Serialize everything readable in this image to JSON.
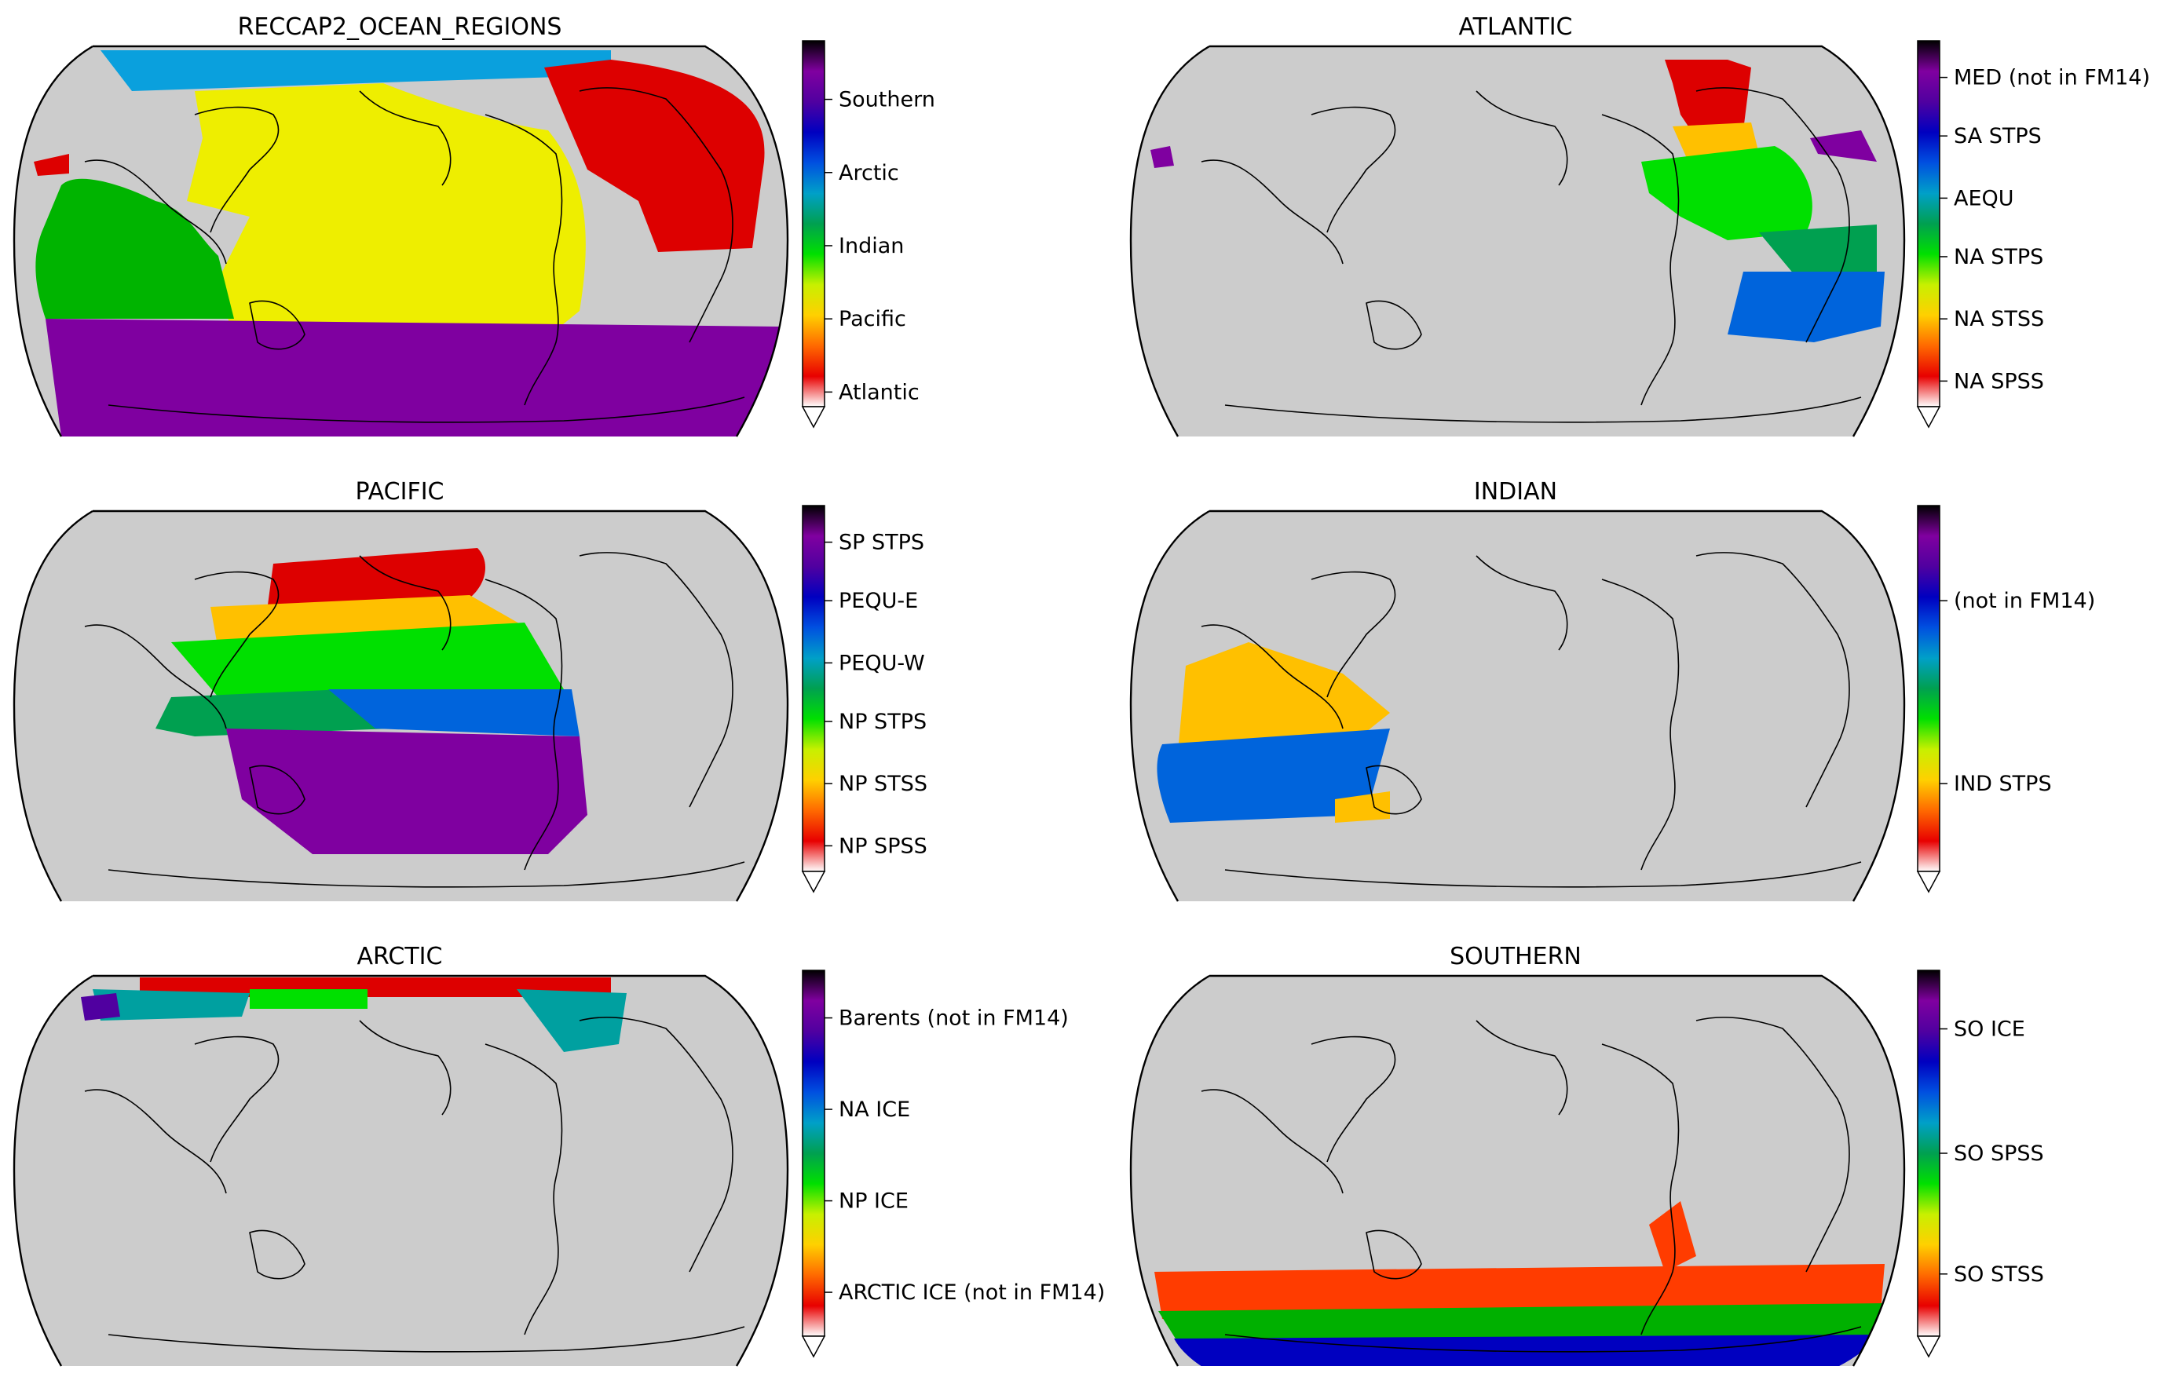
{
  "colors": {
    "land": "#cccccc",
    "background": "#ffffff",
    "atlantic": "#dd0000",
    "pacific": "#eeee00",
    "indian": "#00b400",
    "arctic": "#0aa0dd",
    "southern": "#7f00a0"
  },
  "colormap": [
    "#ffffff",
    "#e80000",
    "#ff6a00",
    "#ffd000",
    "#c8f000",
    "#00e000",
    "#00a050",
    "#00a0c8",
    "#0050e0",
    "#0000c0",
    "#5000a0",
    "#8000a0",
    "#000000"
  ],
  "panels": [
    {
      "id": "reccap2",
      "title": "RECCAP2_OCEAN_REGIONS",
      "colorbar": [
        {
          "label": "Southern",
          "position": 0.84
        },
        {
          "label": "Arctic",
          "position": 0.64
        },
        {
          "label": "Indian",
          "position": 0.44
        },
        {
          "label": "Pacific",
          "position": 0.24
        },
        {
          "label": "Atlantic",
          "position": 0.04
        }
      ]
    },
    {
      "id": "atlantic",
      "title": "ATLANTIC",
      "colorbar": [
        {
          "label": "MED (not in FM14)",
          "position": 0.9
        },
        {
          "label": "SA STPS",
          "position": 0.74
        },
        {
          "label": "AEQU",
          "position": 0.57
        },
        {
          "label": "NA STPS",
          "position": 0.41
        },
        {
          "label": "NA STSS",
          "position": 0.24
        },
        {
          "label": "NA SPSS",
          "position": 0.07
        }
      ]
    },
    {
      "id": "pacific",
      "title": "PACIFIC",
      "colorbar": [
        {
          "label": "SP STPS",
          "position": 0.9
        },
        {
          "label": "PEQU-E",
          "position": 0.74
        },
        {
          "label": "PEQU-W",
          "position": 0.57
        },
        {
          "label": "NP STPS",
          "position": 0.41
        },
        {
          "label": "NP STSS",
          "position": 0.24
        },
        {
          "label": "NP SPSS",
          "position": 0.07
        }
      ]
    },
    {
      "id": "indian",
      "title": "INDIAN",
      "colorbar": [
        {
          "label": "(not in FM14)",
          "position": 0.74
        },
        {
          "label": "IND STPS",
          "position": 0.24
        }
      ]
    },
    {
      "id": "arctic",
      "title": "ARCTIC",
      "colorbar": [
        {
          "label": "Barents (not in FM14)",
          "position": 0.87
        },
        {
          "label": "NA ICE",
          "position": 0.62
        },
        {
          "label": "NP ICE",
          "position": 0.37
        },
        {
          "label": "ARCTIC ICE (not in FM14)",
          "position": 0.12
        }
      ]
    },
    {
      "id": "southern",
      "title": "SOUTHERN",
      "colorbar": [
        {
          "label": "SO ICE",
          "position": 0.84
        },
        {
          "label": "SO SPSS",
          "position": 0.5
        },
        {
          "label": "SO STSS",
          "position": 0.17
        }
      ]
    }
  ]
}
